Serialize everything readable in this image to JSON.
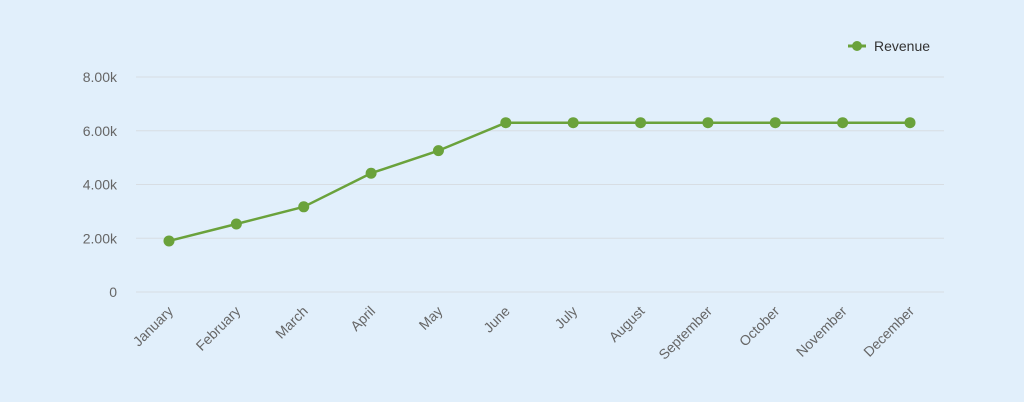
{
  "chart_data": {
    "type": "line",
    "title": "",
    "xlabel": "",
    "ylabel": "",
    "categories": [
      "January",
      "February",
      "March",
      "April",
      "May",
      "June",
      "July",
      "August",
      "September",
      "October",
      "November",
      "December"
    ],
    "series": [
      {
        "name": "Revenue",
        "color": "#6aa23b",
        "values": [
          1900,
          2530,
          3170,
          4420,
          5260,
          6300,
          6300,
          6300,
          6300,
          6300,
          6300,
          6300
        ]
      }
    ],
    "ylim": [
      0,
      8000
    ],
    "yticks": [
      0,
      2000,
      4000,
      6000,
      8000
    ],
    "ytick_labels": [
      "0",
      "2.00k",
      "4.00k",
      "6.00k",
      "8.00k"
    ],
    "grid": true,
    "legend_position": "top-right"
  }
}
